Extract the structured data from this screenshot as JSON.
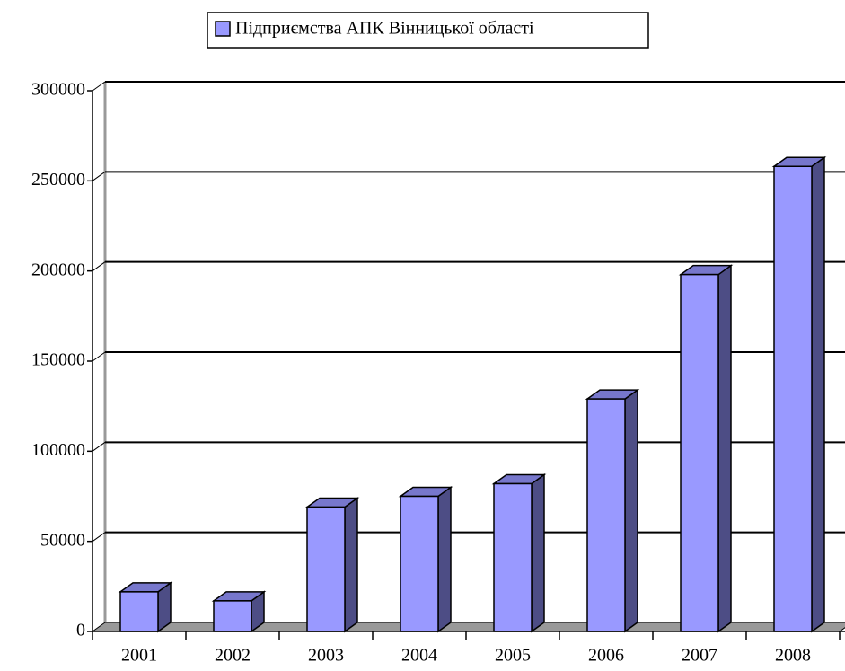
{
  "chart_data": {
    "type": "bar3d",
    "legend_position": "top",
    "categories": [
      "2001",
      "2002",
      "2003",
      "2004",
      "2005",
      "2006",
      "2007",
      "2008"
    ],
    "series": [
      {
        "name": "Підприємства АПК Вінницької області",
        "color": "#9999ff",
        "values": [
          22000,
          17000,
          69000,
          75000,
          82000,
          129000,
          198000,
          258000
        ]
      }
    ],
    "ylim": [
      0,
      300000
    ],
    "yticks": [
      0,
      50000,
      100000,
      150000,
      200000,
      250000,
      300000
    ],
    "grid": true
  }
}
